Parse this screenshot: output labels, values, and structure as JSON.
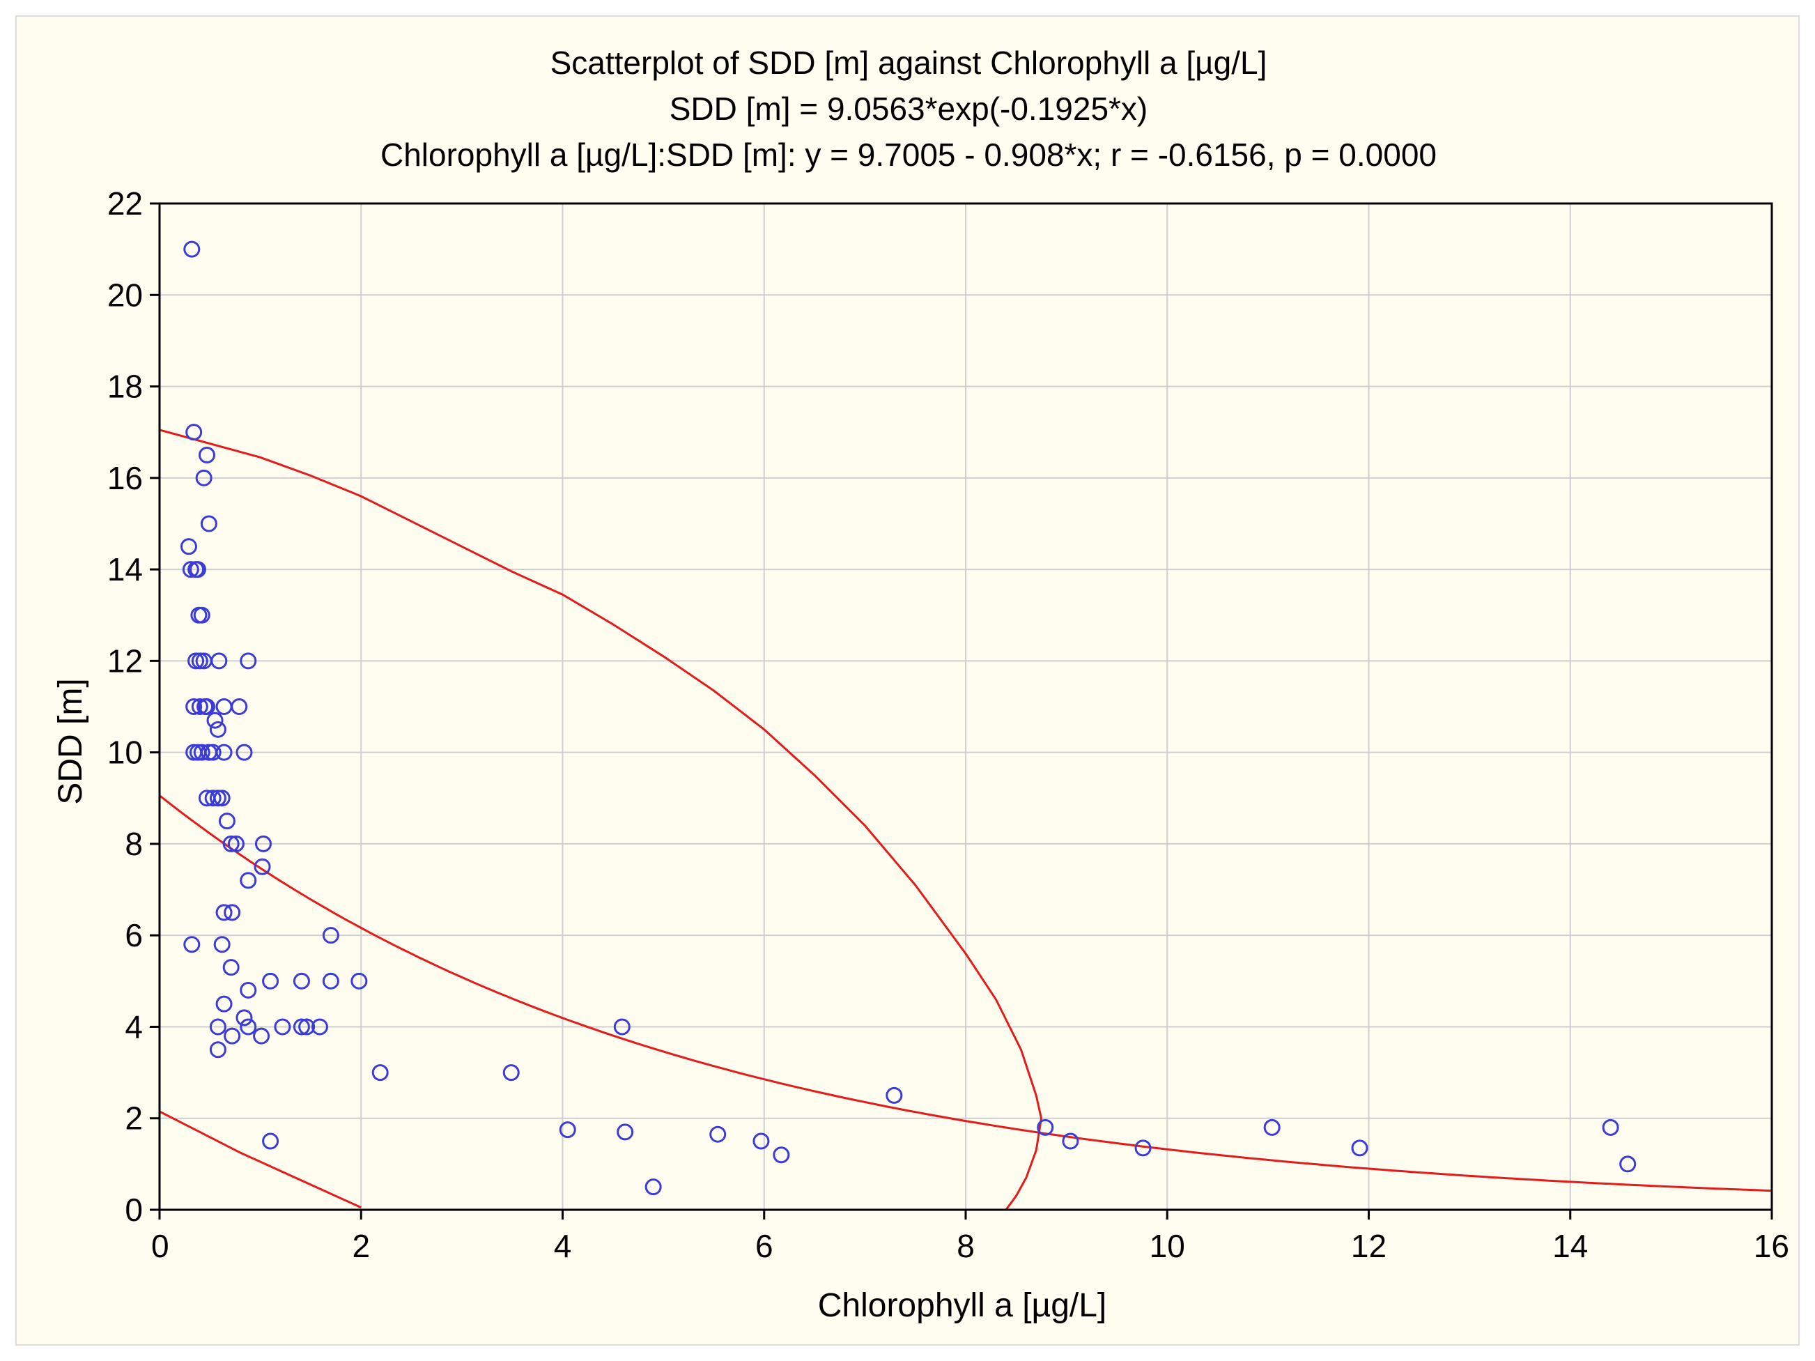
{
  "chart_data": {
    "type": "scatter",
    "title": "Scatterplot of SDD [m] against Chlorophyll a [µg/L]",
    "subtitle_lines": [
      "SDD [m] = 9.0563*exp(-0.1925*x)",
      "Chlorophyll a [µg/L]:SDD [m]:   y = 9.7005 - 0.908*x;  r = -0.6156, p = 0.0000"
    ],
    "xlabel": "Chlorophyll a [µg/L]",
    "ylabel": "SDD [m]",
    "xlim": [
      0,
      16
    ],
    "ylim": [
      0,
      22
    ],
    "xticks": [
      0,
      2,
      4,
      6,
      8,
      10,
      12,
      14,
      16
    ],
    "yticks": [
      0,
      2,
      4,
      6,
      8,
      10,
      12,
      14,
      16,
      18,
      20,
      22
    ],
    "grid": true,
    "colors": {
      "points": "#3b3bd9",
      "curves": "#e31b1b",
      "grid": "#cfcfcf",
      "frame": "#000000"
    },
    "series": [
      {
        "name": "observations",
        "marker": "circle-open",
        "x": [
          0.32,
          0.34,
          0.47,
          0.44,
          0.49,
          0.29,
          0.31,
          0.36,
          0.38,
          0.39,
          0.42,
          0.45,
          0.36,
          0.4,
          0.44,
          0.59,
          0.88,
          0.34,
          0.4,
          0.47,
          0.55,
          0.64,
          0.79,
          0.58,
          0.64,
          0.34,
          0.38,
          0.42,
          0.49,
          0.53,
          0.84,
          0.47,
          0.53,
          0.58,
          0.62,
          0.67,
          0.71,
          0.76,
          1.03,
          1.02,
          0.88,
          0.64,
          0.72,
          1.7,
          0.32,
          0.62,
          0.71,
          1.1,
          1.41,
          1.7,
          1.98,
          0.88,
          0.64,
          0.84,
          0.58,
          0.88,
          0.72,
          1.01,
          1.22,
          1.41,
          1.46,
          1.59,
          4.59,
          0.58,
          2.19,
          3.49,
          7.29,
          4.05,
          4.62,
          5.54,
          5.97,
          6.17,
          4.9,
          8.79,
          9.04,
          9.76,
          11.04,
          11.91,
          14.4,
          14.57,
          1.1
        ],
        "y": [
          21.0,
          17.0,
          16.5,
          16.0,
          15.0,
          14.5,
          14.0,
          14.0,
          14.0,
          13.0,
          13.0,
          11.0,
          12.0,
          12.0,
          12.0,
          12.0,
          12.0,
          11.0,
          11.0,
          11.0,
          10.7,
          11.0,
          11.0,
          10.5,
          10.0,
          10.0,
          10.0,
          10.0,
          10.0,
          10.0,
          10.0,
          9.0,
          9.0,
          9.0,
          9.0,
          8.5,
          8.0,
          8.0,
          8.0,
          7.5,
          7.2,
          6.5,
          6.5,
          6.0,
          5.8,
          5.8,
          5.3,
          5.0,
          5.0,
          5.0,
          5.0,
          4.8,
          4.5,
          4.2,
          4.0,
          4.0,
          3.8,
          3.8,
          4.0,
          4.0,
          4.0,
          4.0,
          4.0,
          3.5,
          3.0,
          3.0,
          2.5,
          1.75,
          1.7,
          1.65,
          1.5,
          1.2,
          0.5,
          1.8,
          1.5,
          1.35,
          1.8,
          1.35,
          1.8,
          1.0,
          1.5
        ]
      },
      {
        "name": "exponential fit",
        "type": "curve",
        "equation": "SDD [m] = 9.0563*exp(-0.1925*x)",
        "a": 9.0563,
        "b": -0.1925,
        "x_range": [
          0,
          16
        ]
      },
      {
        "name": "confidence ellipse",
        "type": "curve",
        "x": [
          0.0,
          0.5,
          1.0,
          1.5,
          2.0,
          2.5,
          3.0,
          3.5,
          4.0,
          4.5,
          5.0,
          5.5,
          6.0,
          6.5,
          7.0,
          7.5,
          8.0,
          8.3,
          8.55,
          8.7,
          8.75,
          8.7,
          8.6,
          8.5,
          8.4
        ],
        "y": [
          17.05,
          16.75,
          16.45,
          16.05,
          15.6,
          15.05,
          14.5,
          13.95,
          13.45,
          12.8,
          12.1,
          11.35,
          10.5,
          9.5,
          8.4,
          7.1,
          5.6,
          4.6,
          3.5,
          2.5,
          2.0,
          1.3,
          0.7,
          0.3,
          0.0
        ]
      },
      {
        "name": "confidence ellipse lower arc",
        "type": "curve",
        "x": [
          0.0,
          0.4,
          0.8,
          1.2,
          1.6,
          2.0
        ],
        "y": [
          2.15,
          1.7,
          1.25,
          0.85,
          0.45,
          0.05
        ]
      }
    ]
  }
}
